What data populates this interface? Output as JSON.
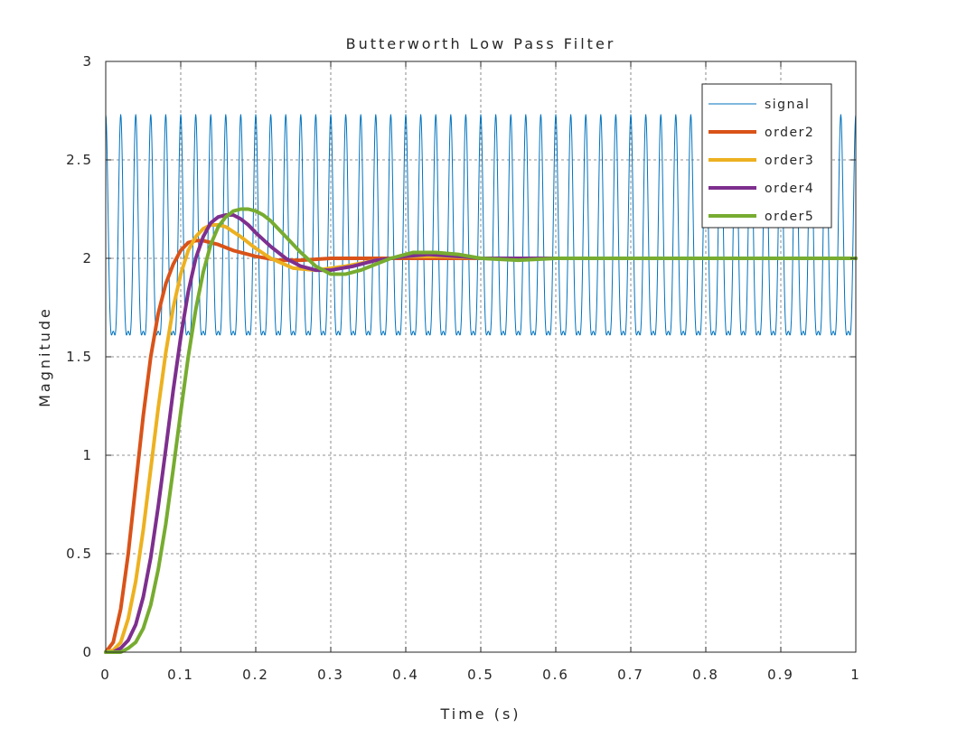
{
  "chart_data": {
    "type": "line",
    "title": "Butterworth Low Pass Filter",
    "xlabel": "Time (s)",
    "ylabel": "Magnitude",
    "xlim": [
      0,
      1
    ],
    "ylim": [
      0,
      3
    ],
    "xticks": [
      0,
      0.1,
      0.2,
      0.3,
      0.4,
      0.5,
      0.6,
      0.7,
      0.8,
      0.9,
      1
    ],
    "xtick_labels": [
      "0",
      "0.1",
      "0.2",
      "0.3",
      "0.4",
      "0.5",
      "0.6",
      "0.7",
      "0.8",
      "0.9",
      "1"
    ],
    "yticks": [
      0,
      0.5,
      1,
      1.5,
      2,
      2.5,
      3
    ],
    "ytick_labels": [
      "0",
      "0.5",
      "1",
      "1.5",
      "2",
      "2.5",
      "3"
    ],
    "grid": true,
    "legend_position": "top-right",
    "series": [
      {
        "name": "signal",
        "color": "#0072BD",
        "style": "thin",
        "model": {
          "offset": 2,
          "amp_fast": 0.55,
          "freq_fast": 50,
          "amp_slow": 0.18,
          "freq_slow": 100,
          "samples_per_second": 2000
        }
      },
      {
        "name": "order2",
        "color": "#D95319",
        "style": "thick",
        "x": [
          0,
          0.01,
          0.02,
          0.03,
          0.04,
          0.05,
          0.06,
          0.07,
          0.08,
          0.09,
          0.1,
          0.11,
          0.12,
          0.13,
          0.14,
          0.15,
          0.17,
          0.2,
          0.23,
          0.26,
          0.3,
          0.35,
          0.4,
          0.5,
          0.6,
          0.7,
          0.8,
          0.9,
          1.0
        ],
        "y": [
          0,
          0.05,
          0.22,
          0.5,
          0.85,
          1.2,
          1.5,
          1.72,
          1.87,
          1.97,
          2.04,
          2.08,
          2.09,
          2.09,
          2.08,
          2.07,
          2.04,
          2.01,
          1.99,
          1.99,
          2.0,
          2.0,
          2.0,
          2.0,
          2.0,
          2.0,
          2.0,
          2.0,
          2.0
        ]
      },
      {
        "name": "order3",
        "color": "#EDB120",
        "style": "thick",
        "x": [
          0,
          0.01,
          0.02,
          0.03,
          0.04,
          0.05,
          0.06,
          0.07,
          0.08,
          0.09,
          0.1,
          0.11,
          0.12,
          0.13,
          0.14,
          0.15,
          0.16,
          0.18,
          0.2,
          0.22,
          0.25,
          0.28,
          0.32,
          0.36,
          0.4,
          0.45,
          0.5,
          0.6,
          0.7,
          0.8,
          0.9,
          1.0
        ],
        "y": [
          0,
          0.01,
          0.05,
          0.17,
          0.36,
          0.62,
          0.93,
          1.24,
          1.52,
          1.75,
          1.92,
          2.04,
          2.11,
          2.15,
          2.17,
          2.17,
          2.16,
          2.11,
          2.05,
          2.0,
          1.95,
          1.94,
          1.96,
          1.99,
          2.01,
          2.01,
          2.0,
          2.0,
          2.0,
          2.0,
          2.0,
          2.0
        ]
      },
      {
        "name": "order4",
        "color": "#7E2F8E",
        "style": "thick",
        "x": [
          0,
          0.01,
          0.02,
          0.03,
          0.04,
          0.05,
          0.06,
          0.07,
          0.08,
          0.09,
          0.1,
          0.11,
          0.12,
          0.13,
          0.14,
          0.15,
          0.16,
          0.17,
          0.18,
          0.19,
          0.2,
          0.22,
          0.24,
          0.26,
          0.28,
          0.3,
          0.33,
          0.36,
          0.4,
          0.43,
          0.47,
          0.5,
          0.6,
          0.7,
          0.8,
          0.9,
          1.0
        ],
        "y": [
          0,
          0.0,
          0.02,
          0.06,
          0.14,
          0.28,
          0.48,
          0.74,
          1.03,
          1.33,
          1.6,
          1.83,
          2.0,
          2.11,
          2.18,
          2.21,
          2.22,
          2.22,
          2.2,
          2.17,
          2.13,
          2.06,
          2.0,
          1.96,
          1.94,
          1.94,
          1.96,
          1.99,
          2.01,
          2.02,
          2.01,
          2.0,
          2.0,
          2.0,
          2.0,
          2.0,
          2.0
        ]
      },
      {
        "name": "order5",
        "color": "#77AC30",
        "style": "thick",
        "x": [
          0,
          0.01,
          0.02,
          0.03,
          0.04,
          0.05,
          0.06,
          0.07,
          0.08,
          0.09,
          0.1,
          0.11,
          0.12,
          0.13,
          0.14,
          0.15,
          0.16,
          0.17,
          0.18,
          0.19,
          0.2,
          0.21,
          0.22,
          0.24,
          0.26,
          0.28,
          0.3,
          0.32,
          0.34,
          0.36,
          0.38,
          0.41,
          0.44,
          0.47,
          0.5,
          0.55,
          0.6,
          0.7,
          0.8,
          0.9,
          1.0
        ],
        "y": [
          0,
          0.0,
          0.0,
          0.02,
          0.05,
          0.12,
          0.24,
          0.42,
          0.65,
          0.93,
          1.22,
          1.5,
          1.74,
          1.93,
          2.07,
          2.16,
          2.21,
          2.24,
          2.25,
          2.25,
          2.24,
          2.22,
          2.19,
          2.11,
          2.03,
          1.96,
          1.92,
          1.92,
          1.94,
          1.97,
          2.0,
          2.03,
          2.03,
          2.02,
          2.0,
          1.99,
          2.0,
          2.0,
          2.0,
          2.0,
          2.0
        ]
      }
    ]
  }
}
